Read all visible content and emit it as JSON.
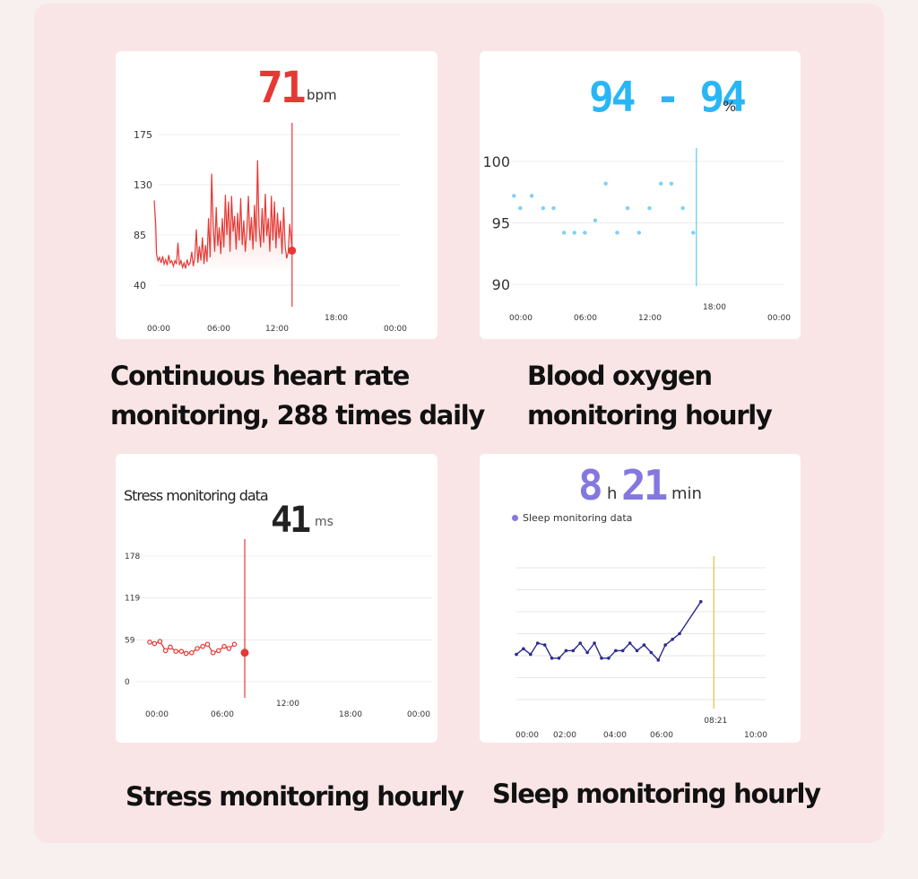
{
  "cards": {
    "heart": {
      "value": "71",
      "unit": "bpm",
      "caption_line1": "Continuous heart rate",
      "caption_line2": "monitoring, 288 times daily",
      "color": "#e53935"
    },
    "oxygen": {
      "value": "94 - 94",
      "unit": "%",
      "caption_line1": "Blood oxygen",
      "caption_line2": "monitoring hourly",
      "color": "#29b6f6"
    },
    "stress": {
      "label": "Stress monitoring data",
      "value": "41",
      "unit": "ms",
      "caption": "Stress monitoring hourly",
      "color": "#e53935"
    },
    "sleep": {
      "hours": "8",
      "hours_unit": "h",
      "minutes": "21",
      "minutes_unit": "min",
      "legend": "Sleep monitoring data",
      "caption": "Sleep monitoring hourly",
      "color": "#2b2a8f",
      "accent": "#8478e0"
    }
  },
  "chart_data": [
    {
      "type": "area",
      "name": "heart-rate",
      "ylim": [
        40,
        175
      ],
      "y_ticks": [
        "175",
        "130",
        "85",
        "40"
      ],
      "x_ticks": [
        "00:00",
        "06:00",
        "12:00",
        "18:00",
        "00:00"
      ],
      "x_range_hours": [
        0,
        24
      ],
      "cursor_hour": 18,
      "marker": {
        "x": 18,
        "y": 71
      },
      "values": [
        {
          "x": 0.0,
          "y": 116
        },
        {
          "x": 0.2,
          "y": 95
        },
        {
          "x": 0.3,
          "y": 68
        },
        {
          "x": 0.5,
          "y": 62
        },
        {
          "x": 0.7,
          "y": 65
        },
        {
          "x": 0.9,
          "y": 60
        },
        {
          "x": 1.1,
          "y": 66
        },
        {
          "x": 1.3,
          "y": 59
        },
        {
          "x": 1.5,
          "y": 63
        },
        {
          "x": 1.7,
          "y": 58
        },
        {
          "x": 1.9,
          "y": 67
        },
        {
          "x": 2.1,
          "y": 60
        },
        {
          "x": 2.3,
          "y": 62
        },
        {
          "x": 2.5,
          "y": 57
        },
        {
          "x": 2.7,
          "y": 62
        },
        {
          "x": 2.9,
          "y": 59
        },
        {
          "x": 3.1,
          "y": 78
        },
        {
          "x": 3.3,
          "y": 58
        },
        {
          "x": 3.5,
          "y": 62
        },
        {
          "x": 3.7,
          "y": 56
        },
        {
          "x": 3.9,
          "y": 60
        },
        {
          "x": 4.1,
          "y": 55
        },
        {
          "x": 4.3,
          "y": 63
        },
        {
          "x": 4.5,
          "y": 58
        },
        {
          "x": 4.7,
          "y": 60
        },
        {
          "x": 4.9,
          "y": 70
        },
        {
          "x": 5.1,
          "y": 57
        },
        {
          "x": 5.3,
          "y": 65
        },
        {
          "x": 5.5,
          "y": 90
        },
        {
          "x": 5.7,
          "y": 60
        },
        {
          "x": 5.9,
          "y": 75
        },
        {
          "x": 6.1,
          "y": 62
        },
        {
          "x": 6.3,
          "y": 83
        },
        {
          "x": 6.5,
          "y": 59
        },
        {
          "x": 6.7,
          "y": 76
        },
        {
          "x": 6.9,
          "y": 61
        },
        {
          "x": 7.1,
          "y": 100
        },
        {
          "x": 7.3,
          "y": 65
        },
        {
          "x": 7.5,
          "y": 140
        },
        {
          "x": 7.7,
          "y": 95
        },
        {
          "x": 7.9,
          "y": 70
        },
        {
          "x": 8.1,
          "y": 110
        },
        {
          "x": 8.3,
          "y": 75
        },
        {
          "x": 8.5,
          "y": 92
        },
        {
          "x": 8.7,
          "y": 68
        },
        {
          "x": 8.9,
          "y": 100
        },
        {
          "x": 9.1,
          "y": 74
        },
        {
          "x": 9.3,
          "y": 121
        },
        {
          "x": 9.5,
          "y": 85
        },
        {
          "x": 9.7,
          "y": 115
        },
        {
          "x": 9.9,
          "y": 70
        },
        {
          "x": 10.1,
          "y": 120
        },
        {
          "x": 10.3,
          "y": 88
        },
        {
          "x": 10.5,
          "y": 102
        },
        {
          "x": 10.7,
          "y": 72
        },
        {
          "x": 10.9,
          "y": 105
        },
        {
          "x": 11.1,
          "y": 80
        },
        {
          "x": 11.3,
          "y": 118
        },
        {
          "x": 11.5,
          "y": 76
        },
        {
          "x": 11.7,
          "y": 98
        },
        {
          "x": 11.9,
          "y": 70
        },
        {
          "x": 12.1,
          "y": 90
        },
        {
          "x": 12.3,
          "y": 120
        },
        {
          "x": 12.5,
          "y": 80
        },
        {
          "x": 12.7,
          "y": 101
        },
        {
          "x": 12.9,
          "y": 72
        },
        {
          "x": 13.1,
          "y": 112
        },
        {
          "x": 13.3,
          "y": 79
        },
        {
          "x": 13.5,
          "y": 152
        },
        {
          "x": 13.7,
          "y": 92
        },
        {
          "x": 13.9,
          "y": 74
        },
        {
          "x": 14.1,
          "y": 109
        },
        {
          "x": 14.3,
          "y": 78
        },
        {
          "x": 14.5,
          "y": 122
        },
        {
          "x": 14.7,
          "y": 84
        },
        {
          "x": 14.9,
          "y": 100
        },
        {
          "x": 15.1,
          "y": 70
        },
        {
          "x": 15.3,
          "y": 120
        },
        {
          "x": 15.5,
          "y": 80
        },
        {
          "x": 15.7,
          "y": 115
        },
        {
          "x": 15.9,
          "y": 73
        },
        {
          "x": 16.1,
          "y": 105
        },
        {
          "x": 16.3,
          "y": 82
        },
        {
          "x": 16.5,
          "y": 98
        },
        {
          "x": 16.7,
          "y": 68
        },
        {
          "x": 16.9,
          "y": 110
        },
        {
          "x": 17.1,
          "y": 75
        },
        {
          "x": 17.3,
          "y": 64
        },
        {
          "x": 17.5,
          "y": 70
        },
        {
          "x": 17.7,
          "y": 95
        },
        {
          "x": 17.9,
          "y": 80
        },
        {
          "x": 18.0,
          "y": 71
        }
      ]
    },
    {
      "type": "scatter",
      "name": "blood-oxygen",
      "ylim": [
        90,
        100
      ],
      "y_ticks": [
        "100",
        "95",
        "90"
      ],
      "x_ticks": [
        "00:00",
        "06:00",
        "12:00",
        "18:00",
        "00:00"
      ],
      "x_range_hours": [
        0,
        24
      ],
      "cursor_hour": 17.7,
      "values": [
        {
          "x": 0.2,
          "y": 97.2
        },
        {
          "x": 0.8,
          "y": 96.2
        },
        {
          "x": 1.9,
          "y": 97.2
        },
        {
          "x": 3.0,
          "y": 96.2
        },
        {
          "x": 4.0,
          "y": 96.2
        },
        {
          "x": 5.0,
          "y": 94.2
        },
        {
          "x": 6.0,
          "y": 94.2
        },
        {
          "x": 7.0,
          "y": 94.2
        },
        {
          "x": 8.0,
          "y": 95.2
        },
        {
          "x": 9.0,
          "y": 98.2
        },
        {
          "x": 10.1,
          "y": 94.2
        },
        {
          "x": 11.1,
          "y": 96.2
        },
        {
          "x": 12.2,
          "y": 94.2
        },
        {
          "x": 13.2,
          "y": 96.2
        },
        {
          "x": 14.3,
          "y": 98.2
        },
        {
          "x": 15.3,
          "y": 98.2
        },
        {
          "x": 16.4,
          "y": 96.2
        },
        {
          "x": 17.4,
          "y": 94.2
        }
      ]
    },
    {
      "type": "line",
      "name": "stress",
      "ylim": [
        0,
        178
      ],
      "y_ticks": [
        "178",
        "119",
        "59",
        "0"
      ],
      "x_ticks": [
        "00:00",
        "06:00",
        "12:00",
        "18:00",
        "00:00"
      ],
      "x_range_hours": [
        0,
        24
      ],
      "cursor_hour": 12.0,
      "marker": {
        "x": 12.0,
        "y": 41
      },
      "values": [
        {
          "x": 0.0,
          "y": 56
        },
        {
          "x": 0.6,
          "y": 54
        },
        {
          "x": 1.3,
          "y": 57
        },
        {
          "x": 2.0,
          "y": 44
        },
        {
          "x": 2.6,
          "y": 49
        },
        {
          "x": 3.3,
          "y": 43
        },
        {
          "x": 4.0,
          "y": 43
        },
        {
          "x": 4.6,
          "y": 40
        },
        {
          "x": 5.3,
          "y": 41
        },
        {
          "x": 6.0,
          "y": 47
        },
        {
          "x": 6.7,
          "y": 50
        },
        {
          "x": 7.3,
          "y": 53
        },
        {
          "x": 8.0,
          "y": 41
        },
        {
          "x": 8.7,
          "y": 44
        },
        {
          "x": 9.4,
          "y": 50
        },
        {
          "x": 10.0,
          "y": 47
        },
        {
          "x": 10.7,
          "y": 53
        }
      ]
    },
    {
      "type": "line",
      "name": "sleep",
      "x_ticks": [
        "00:00",
        "02:00",
        "04:00",
        "06:00",
        "10:00"
      ],
      "cursor_label": "08:21",
      "x_range_hours": [
        0,
        10.5
      ],
      "cursor_hour": 8.35,
      "ylim": [
        0,
        7
      ],
      "values": [
        {
          "x": 0.0,
          "y": 2.4
        },
        {
          "x": 0.3,
          "y": 2.7
        },
        {
          "x": 0.6,
          "y": 2.4
        },
        {
          "x": 0.9,
          "y": 3.0
        },
        {
          "x": 1.2,
          "y": 2.9
        },
        {
          "x": 1.5,
          "y": 2.2
        },
        {
          "x": 1.8,
          "y": 2.2
        },
        {
          "x": 2.1,
          "y": 2.6
        },
        {
          "x": 2.4,
          "y": 2.6
        },
        {
          "x": 2.7,
          "y": 3.0
        },
        {
          "x": 3.0,
          "y": 2.5
        },
        {
          "x": 3.3,
          "y": 3.0
        },
        {
          "x": 3.6,
          "y": 2.2
        },
        {
          "x": 3.9,
          "y": 2.2
        },
        {
          "x": 4.2,
          "y": 2.6
        },
        {
          "x": 4.5,
          "y": 2.6
        },
        {
          "x": 4.8,
          "y": 3.0
        },
        {
          "x": 5.1,
          "y": 2.6
        },
        {
          "x": 5.4,
          "y": 2.9
        },
        {
          "x": 5.7,
          "y": 2.5
        },
        {
          "x": 6.0,
          "y": 2.1
        },
        {
          "x": 6.3,
          "y": 2.9
        },
        {
          "x": 6.6,
          "y": 3.2
        },
        {
          "x": 6.9,
          "y": 3.5
        },
        {
          "x": 7.8,
          "y": 5.2
        }
      ]
    }
  ]
}
